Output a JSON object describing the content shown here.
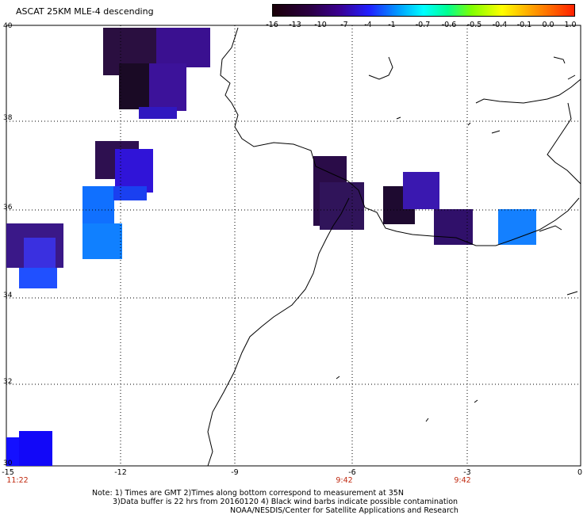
{
  "title": "ASCAT 25KM MLE-4 descending",
  "colorbar": {
    "ticks": [
      "-16",
      "-13",
      "-10",
      "-7",
      "-4",
      "-1",
      "-0.7",
      "-0.6",
      "-0.5",
      "-0.4",
      "-0.1",
      "0.0",
      "1.0"
    ]
  },
  "map": {
    "lat_labels": [
      "40",
      "38",
      "36",
      "34",
      "32",
      "30"
    ],
    "lon_labels": [
      "-15",
      "-12",
      "-9",
      "-6",
      "-3",
      "0"
    ],
    "time_labels": [
      "11:22",
      "9:42",
      "9:42"
    ]
  },
  "note": {
    "line1": "Note: 1) Times are GMT 2)Times along bottom correspond to measurement at 35N",
    "line2": "3)Data buffer is 22 hrs from 20160120 4) Black wind barbs indicate possible contamination",
    "line3": "NOAA/NESDIS/Center for Satellite Applications and Research"
  }
}
